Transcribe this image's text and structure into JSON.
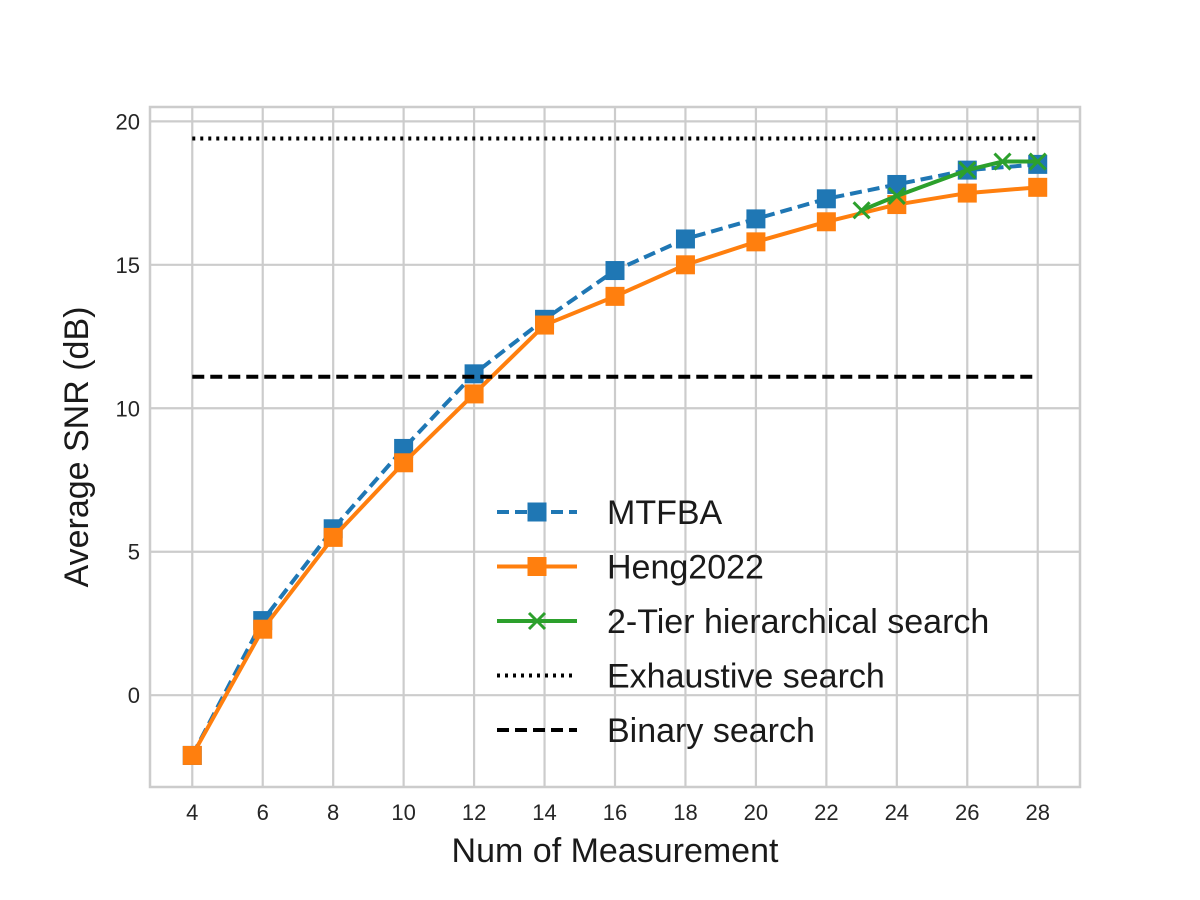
{
  "chart_data": {
    "type": "line",
    "xlabel": "Num of Measurement",
    "ylabel": "Average SNR (dB)",
    "xlim": [
      2.8,
      29.2
    ],
    "ylim": [
      -3.2,
      20.5
    ],
    "xticks": [
      4,
      6,
      8,
      10,
      12,
      14,
      16,
      18,
      20,
      22,
      24,
      26,
      28
    ],
    "yticks": [
      0,
      5,
      10,
      15,
      20
    ],
    "grid": true,
    "legend_position": "lower-right",
    "series": [
      {
        "name": "MTFBA",
        "color": "#1f77b4",
        "line_style": "dashed",
        "marker": "square",
        "x": [
          4,
          6,
          8,
          10,
          12,
          14,
          16,
          18,
          20,
          22,
          24,
          26,
          28
        ],
        "y": [
          -2.1,
          2.6,
          5.8,
          8.6,
          11.2,
          13.1,
          14.8,
          15.9,
          16.6,
          17.3,
          17.8,
          18.3,
          18.5
        ]
      },
      {
        "name": "Heng2022",
        "color": "#ff7f0e",
        "line_style": "solid",
        "marker": "square",
        "x": [
          4,
          6,
          8,
          10,
          12,
          14,
          16,
          18,
          20,
          22,
          24,
          26,
          28
        ],
        "y": [
          -2.1,
          2.3,
          5.5,
          8.1,
          10.5,
          12.9,
          13.9,
          15.0,
          15.8,
          16.5,
          17.1,
          17.5,
          17.7
        ]
      },
      {
        "name": "2-Tier hierarchical search",
        "color": "#2ca02c",
        "line_style": "solid",
        "marker": "x",
        "x": [
          23,
          24,
          26,
          27,
          28
        ],
        "y": [
          16.9,
          17.4,
          18.3,
          18.6,
          18.6
        ]
      },
      {
        "name": "Exhaustive search",
        "color": "#000000",
        "line_style": "dotted",
        "marker": "none",
        "x": [
          4,
          28
        ],
        "y": [
          19.4,
          19.4
        ]
      },
      {
        "name": "Binary search",
        "color": "#000000",
        "line_style": "dashed",
        "marker": "none",
        "x": [
          4,
          28
        ],
        "y": [
          11.1,
          11.1
        ]
      }
    ]
  }
}
